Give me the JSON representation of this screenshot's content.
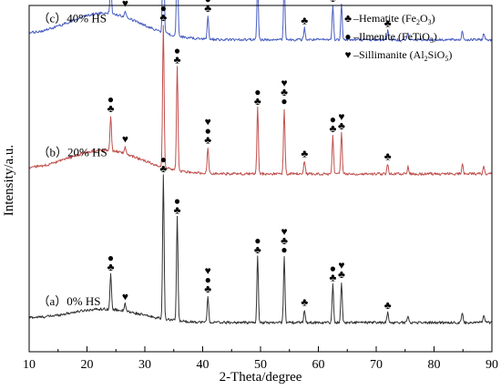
{
  "chart_data": {
    "type": "line",
    "xlabel": "2-Theta/degree",
    "ylabel": "Intensity/a.u.",
    "xlim": [
      10,
      90
    ],
    "x_ticks": [
      10,
      20,
      30,
      40,
      50,
      60,
      70,
      80,
      90
    ],
    "y_ticks_shown": false,
    "grid": false,
    "legend_position": "top-right",
    "legend": [
      {
        "symbol": "♣",
        "label": "–Hematite (Fe",
        "sub1": "2",
        "mid": "O",
        "sub2": "3",
        "end": ")"
      },
      {
        "symbol": "●",
        "label": "–Ilmenite (FeTiO",
        "sub1": "3",
        "mid": "",
        "sub2": "",
        "end": ")"
      },
      {
        "symbol": "♥",
        "label": "–Sillimanite (Al",
        "sub1": "2",
        "mid": "SiO",
        "sub2": "5",
        "end": ")"
      }
    ],
    "series": [
      {
        "name": "(a) 0% HS",
        "label": "（a）0% HS",
        "color": "#333333",
        "baseline": 0,
        "bg_hump": 0.9
      },
      {
        "name": "(b) 20% HS",
        "label": "（b）20% HS",
        "color": "#c0504d",
        "baseline": 10.2,
        "bg_hump": 1.6
      },
      {
        "name": "(c) 40% HS",
        "label": "（c）40% HS",
        "color": "#4a5fc1",
        "baseline": 19.4,
        "bg_hump": 1.8
      }
    ],
    "peaks": [
      {
        "x": 24.1,
        "h": 2.4,
        "markers": [
          "hematite",
          "ilmenite"
        ]
      },
      {
        "x": 26.6,
        "h": 0.5,
        "markers": [
          "sillimanite"
        ]
      },
      {
        "x": 33.2,
        "h": 9.8,
        "markers": [
          "hematite",
          "ilmenite"
        ]
      },
      {
        "x": 35.6,
        "h": 7.1,
        "markers": [
          "hematite",
          "ilmenite"
        ]
      },
      {
        "x": 40.9,
        "h": 1.8,
        "markers": [
          "hematite",
          "ilmenite",
          "sillimanite"
        ]
      },
      {
        "x": 49.5,
        "h": 4.5,
        "markers": [
          "hematite",
          "ilmenite"
        ]
      },
      {
        "x": 54.1,
        "h": 4.5,
        "markers": [
          "ilmenite",
          "hematite",
          "sillimanite"
        ]
      },
      {
        "x": 57.6,
        "h": 0.9,
        "markers": [
          "hematite"
        ]
      },
      {
        "x": 62.5,
        "h": 2.6,
        "markers": [
          "hematite",
          "ilmenite"
        ]
      },
      {
        "x": 64.0,
        "h": 2.8,
        "markers": [
          "hematite",
          "sillimanite"
        ]
      },
      {
        "x": 72.0,
        "h": 0.7,
        "markers": [
          "hematite"
        ]
      },
      {
        "x": 75.5,
        "h": 0.5,
        "markers": []
      },
      {
        "x": 84.9,
        "h": 0.7,
        "markers": []
      },
      {
        "x": 88.6,
        "h": 0.5,
        "markers": []
      }
    ],
    "marker_symbols": {
      "hematite": "♣",
      "ilmenite": "●",
      "sillimanite": "♥"
    }
  }
}
